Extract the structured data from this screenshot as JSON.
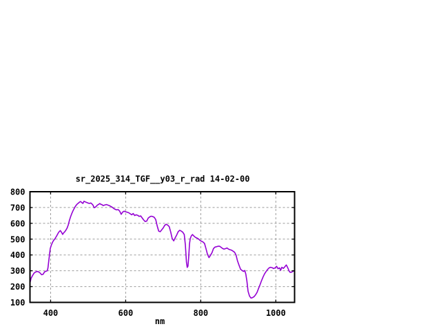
{
  "page": {
    "background": "#ffffff"
  },
  "chart_data": {
    "type": "line",
    "title": "sr_2025_314_TGF__y03_r_rad 14-02-00",
    "xlabel": "nm",
    "ylabel": "",
    "xlim": [
      345,
      1050
    ],
    "ylim": [
      100,
      800
    ],
    "xticks": [
      400,
      600,
      800,
      1000
    ],
    "yticks": [
      100,
      200,
      300,
      400,
      500,
      600,
      700,
      800
    ],
    "grid": true,
    "legend_position": "none",
    "line_color": "#9400d3",
    "grid_color": "#9b9b9b",
    "frame_color": "#000000",
    "text_color": "#000000",
    "series": [
      {
        "name": "sr_2025_314_TGF__y03_r_rad",
        "x": [
          345,
          348,
          352,
          356,
          360,
          364,
          368,
          372,
          376,
          380,
          384,
          388,
          391,
          393,
          395,
          397,
          399,
          402,
          405,
          408,
          411,
          414,
          417,
          420,
          423,
          426,
          429,
          432,
          435,
          438,
          441,
          444,
          447,
          450,
          453,
          456,
          459,
          462,
          465,
          468,
          471,
          474,
          477,
          480,
          483,
          486,
          489,
          492,
          495,
          498,
          501,
          504,
          507,
          510,
          513,
          516,
          519,
          522,
          525,
          528,
          531,
          534,
          537,
          540,
          543,
          546,
          549,
          552,
          555,
          558,
          561,
          564,
          568,
          572,
          576,
          580,
          584,
          588,
          592,
          596,
          600,
          604,
          608,
          612,
          616,
          620,
          624,
          628,
          632,
          636,
          640,
          644,
          648,
          652,
          656,
          660,
          664,
          668,
          672,
          676,
          680,
          684,
          688,
          692,
          696,
          700,
          704,
          708,
          712,
          716,
          720,
          724,
          728,
          732,
          736,
          740,
          744,
          748,
          752,
          756,
          759,
          762,
          764,
          766,
          768,
          770,
          772,
          775,
          778,
          782,
          786,
          790,
          794,
          798,
          802,
          806,
          810,
          814,
          818,
          822,
          826,
          830,
          834,
          838,
          842,
          846,
          850,
          854,
          858,
          862,
          866,
          870,
          874,
          878,
          882,
          886,
          890,
          894,
          898,
          902,
          906,
          910,
          914,
          917,
          920,
          923,
          926,
          930,
          934,
          938,
          942,
          946,
          950,
          954,
          958,
          962,
          966,
          970,
          974,
          978,
          982,
          986,
          990,
          994,
          998,
          1002,
          1006,
          1010,
          1013,
          1016,
          1020,
          1024,
          1028,
          1032,
          1035,
          1038,
          1042,
          1046,
          1050
        ],
        "y": [
          222,
          252,
          270,
          286,
          292,
          296,
          293,
          286,
          275,
          278,
          293,
          297,
          300,
          318,
          360,
          400,
          440,
          462,
          480,
          492,
          500,
          512,
          524,
          538,
          548,
          554,
          543,
          530,
          540,
          548,
          558,
          570,
          590,
          618,
          640,
          660,
          676,
          690,
          704,
          714,
          722,
          728,
          734,
          738,
          731,
          726,
          740,
          736,
          733,
          730,
          727,
          726,
          729,
          723,
          715,
          699,
          702,
          709,
          716,
          720,
          725,
          720,
          718,
          712,
          715,
          717,
          719,
          716,
          713,
          710,
          706,
          702,
          694,
          689,
          685,
          687,
          677,
          657,
          671,
          677,
          673,
          670,
          667,
          661,
          654,
          662,
          649,
          654,
          651,
          644,
          647,
          634,
          621,
          611,
          614,
          633,
          641,
          645,
          643,
          638,
          624,
          584,
          551,
          547,
          559,
          571,
          587,
          594,
          589,
          579,
          544,
          504,
          489,
          509,
          527,
          547,
          556,
          551,
          544,
          529,
          464,
          354,
          321,
          329,
          389,
          469,
          504,
          521,
          529,
          519,
          511,
          507,
          501,
          492,
          487,
          482,
          473,
          439,
          404,
          383,
          398,
          415,
          440,
          450,
          452,
          455,
          455,
          449,
          441,
          437,
          440,
          444,
          437,
          433,
          430,
          424,
          417,
          400,
          362,
          335,
          310,
          302,
          296,
          302,
          280,
          235,
          170,
          140,
          127,
          130,
          136,
          148,
          163,
          188,
          212,
          238,
          260,
          280,
          295,
          308,
          318,
          322,
          320,
          314,
          318,
          328,
          313,
          318,
          303,
          322,
          315,
          325,
          337,
          318,
          300,
          290,
          291,
          297,
          300
        ]
      }
    ]
  }
}
